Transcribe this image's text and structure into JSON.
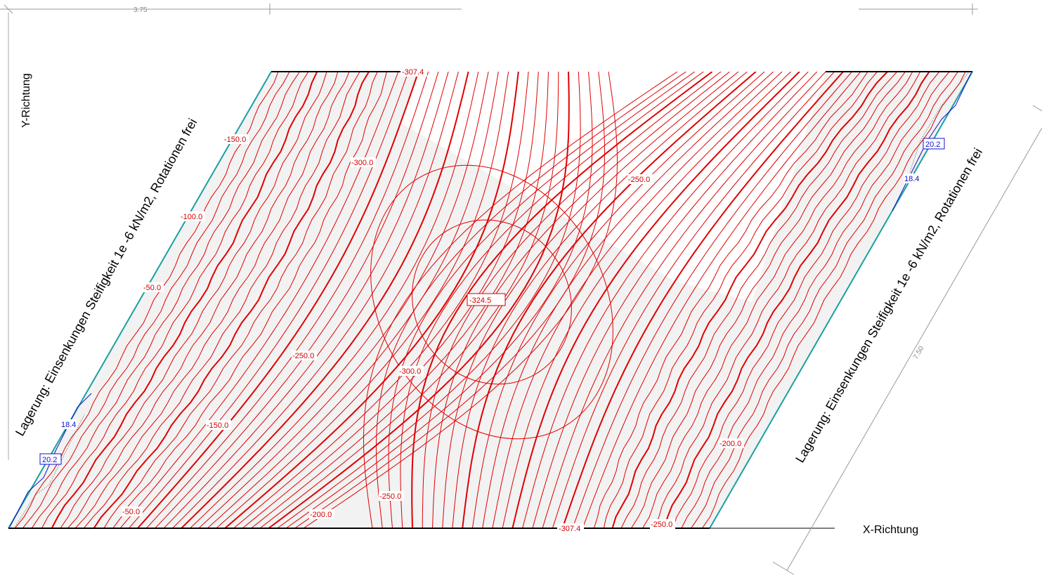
{
  "axes": {
    "x_label": "X-Richtung",
    "y_label": "Y-Richtung"
  },
  "dimensions": {
    "top": "3.75",
    "diagonal": "7.50"
  },
  "support": {
    "left": "Lagerung: Einsenkungen Steifigkeit 1e -6 kN/m2, Rotationen frei",
    "right": "Lagerung: Einsenkungen Steifigkeit 1e -6 kN/m2, Rotationen frei"
  },
  "labels": {
    "min": "-324.5",
    "edge_top": "-307.4",
    "edge_bottom": "-307.4",
    "l150a": "-150.0",
    "l300a": "-300.0",
    "l250a": "-250.0",
    "l100": "-100.0",
    "l50a": "-50.0",
    "l250b": "-250.0",
    "l300b": "-300.0",
    "l150b": "-150.0",
    "l200a": "-200.0",
    "l250c": "-250.0",
    "l50b": "-50.0",
    "l200b": "-200.0",
    "l250d": "-250.0",
    "b184a": "18.4",
    "b202a": "20.2",
    "b202b": "20.2",
    "b184b": "18.4"
  },
  "colors": {
    "contour": "#e00000",
    "positive": "#1010d0",
    "fill": "#f2f2f2"
  }
}
